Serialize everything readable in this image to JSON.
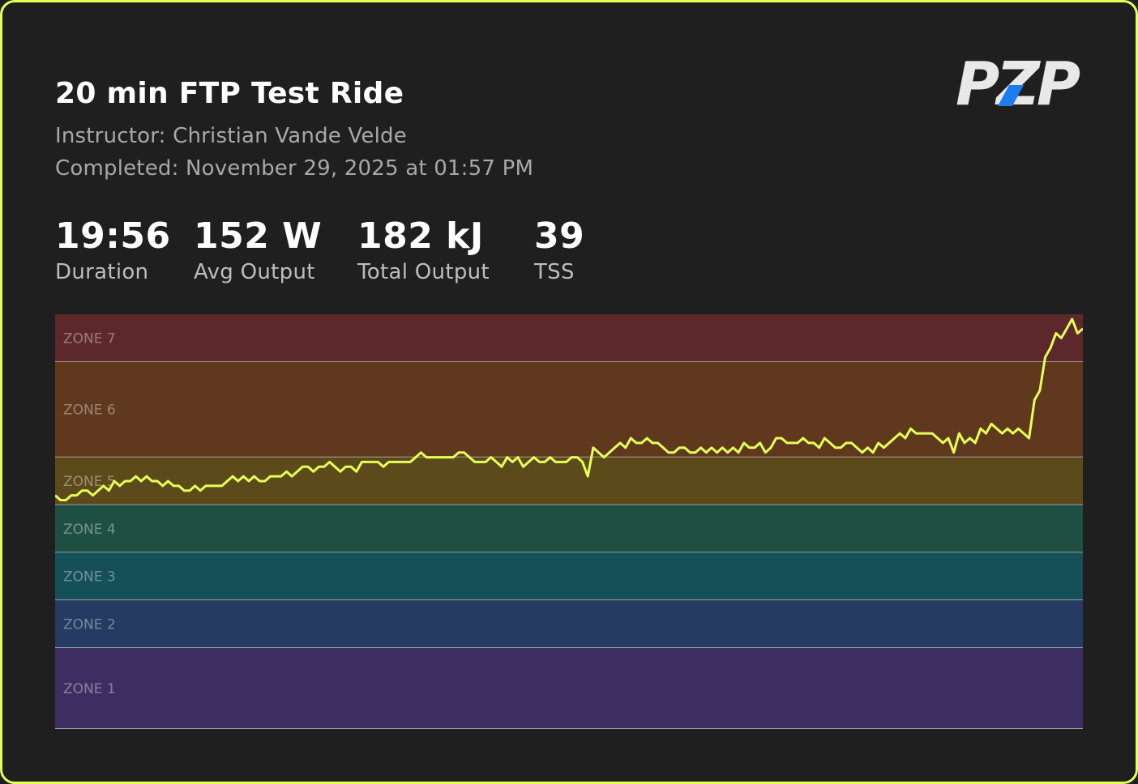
{
  "ride": {
    "title": "20 min FTP Test Ride",
    "instructor": "Instructor: Christian Vande Velde",
    "completed": "Completed: November 29, 2025 at 01:57 PM"
  },
  "stats": [
    {
      "value": "19:56",
      "label": "Duration"
    },
    {
      "value": "152 W",
      "label": "Avg Output"
    },
    {
      "value": "182 kJ",
      "label": "Total Output"
    },
    {
      "value": "39",
      "label": "TSS"
    }
  ],
  "logo": {
    "text": "PZP",
    "colors": [
      "#e8e8e8",
      "#1f7cf0"
    ]
  },
  "colors": {
    "accent": "#e4ff57",
    "background": "#1f1f1f",
    "line": "#e4ff57"
  },
  "chart_data": {
    "type": "line",
    "zones": [
      {
        "name": "ZONE 7",
        "color": "#5c282b"
      },
      {
        "name": "ZONE 6",
        "color": "#5f381e"
      },
      {
        "name": "ZONE 5",
        "color": "#5d4a1b"
      },
      {
        "name": "ZONE 4",
        "color": "#1f4f42"
      },
      {
        "name": "ZONE 3",
        "color": "#154f57"
      },
      {
        "name": "ZONE 2",
        "color": "#263b61"
      },
      {
        "name": "ZONE 1",
        "color": "#3d2e61"
      }
    ],
    "series": [
      {
        "values": [
          3.2,
          3.1,
          3.1,
          3.2,
          3.2,
          3.3,
          3.3,
          3.2,
          3.3,
          3.4,
          3.3,
          3.5,
          3.4,
          3.5,
          3.5,
          3.6,
          3.5,
          3.6,
          3.5,
          3.5,
          3.4,
          3.5,
          3.4,
          3.4,
          3.3,
          3.3,
          3.4,
          3.3,
          3.4,
          3.4,
          3.4,
          3.4,
          3.5,
          3.6,
          3.5,
          3.6,
          3.5,
          3.6,
          3.5,
          3.5,
          3.6,
          3.6,
          3.6,
          3.7,
          3.6,
          3.7,
          3.8,
          3.8,
          3.7,
          3.8,
          3.8,
          3.9,
          3.8,
          3.7,
          3.8,
          3.8,
          3.7,
          3.9,
          3.9,
          3.9,
          3.9,
          3.8,
          3.9,
          3.9,
          3.9,
          3.9,
          3.9,
          4.0,
          4.1,
          4.0,
          4.0,
          4.0,
          4.0,
          4.0,
          4.0,
          4.1,
          4.1,
          4.0,
          3.9,
          3.9,
          3.9,
          4.0,
          3.9,
          3.8,
          4.0,
          3.9,
          4.0,
          3.8,
          3.9,
          4.0,
          3.9,
          3.9,
          4.0,
          3.9,
          3.9,
          3.9,
          4.0,
          4.0,
          3.9,
          3.6,
          4.2,
          4.1,
          4.0,
          4.1,
          4.2,
          4.3,
          4.2,
          4.4,
          4.3,
          4.3,
          4.4,
          4.3,
          4.3,
          4.2,
          4.1,
          4.1,
          4.2,
          4.2,
          4.1,
          4.1,
          4.2,
          4.1,
          4.2,
          4.1,
          4.2,
          4.1,
          4.2,
          4.1,
          4.3,
          4.2,
          4.2,
          4.3,
          4.1,
          4.2,
          4.4,
          4.4,
          4.3,
          4.3,
          4.3,
          4.4,
          4.3,
          4.3,
          4.2,
          4.4,
          4.3,
          4.2,
          4.2,
          4.3,
          4.3,
          4.2,
          4.1,
          4.2,
          4.1,
          4.3,
          4.2,
          4.3,
          4.4,
          4.5,
          4.4,
          4.6,
          4.5,
          4.5,
          4.5,
          4.5,
          4.4,
          4.3,
          4.4,
          4.1,
          4.5,
          4.3,
          4.4,
          4.3,
          4.6,
          4.5,
          4.7,
          4.6,
          4.5,
          4.6,
          4.5,
          4.6,
          4.5,
          4.4,
          5.2,
          5.4,
          6.1,
          6.3,
          6.6,
          6.5,
          6.7,
          6.9,
          6.6,
          6.7
        ]
      }
    ],
    "ylim": [
      0,
      7
    ],
    "grid": true
  }
}
